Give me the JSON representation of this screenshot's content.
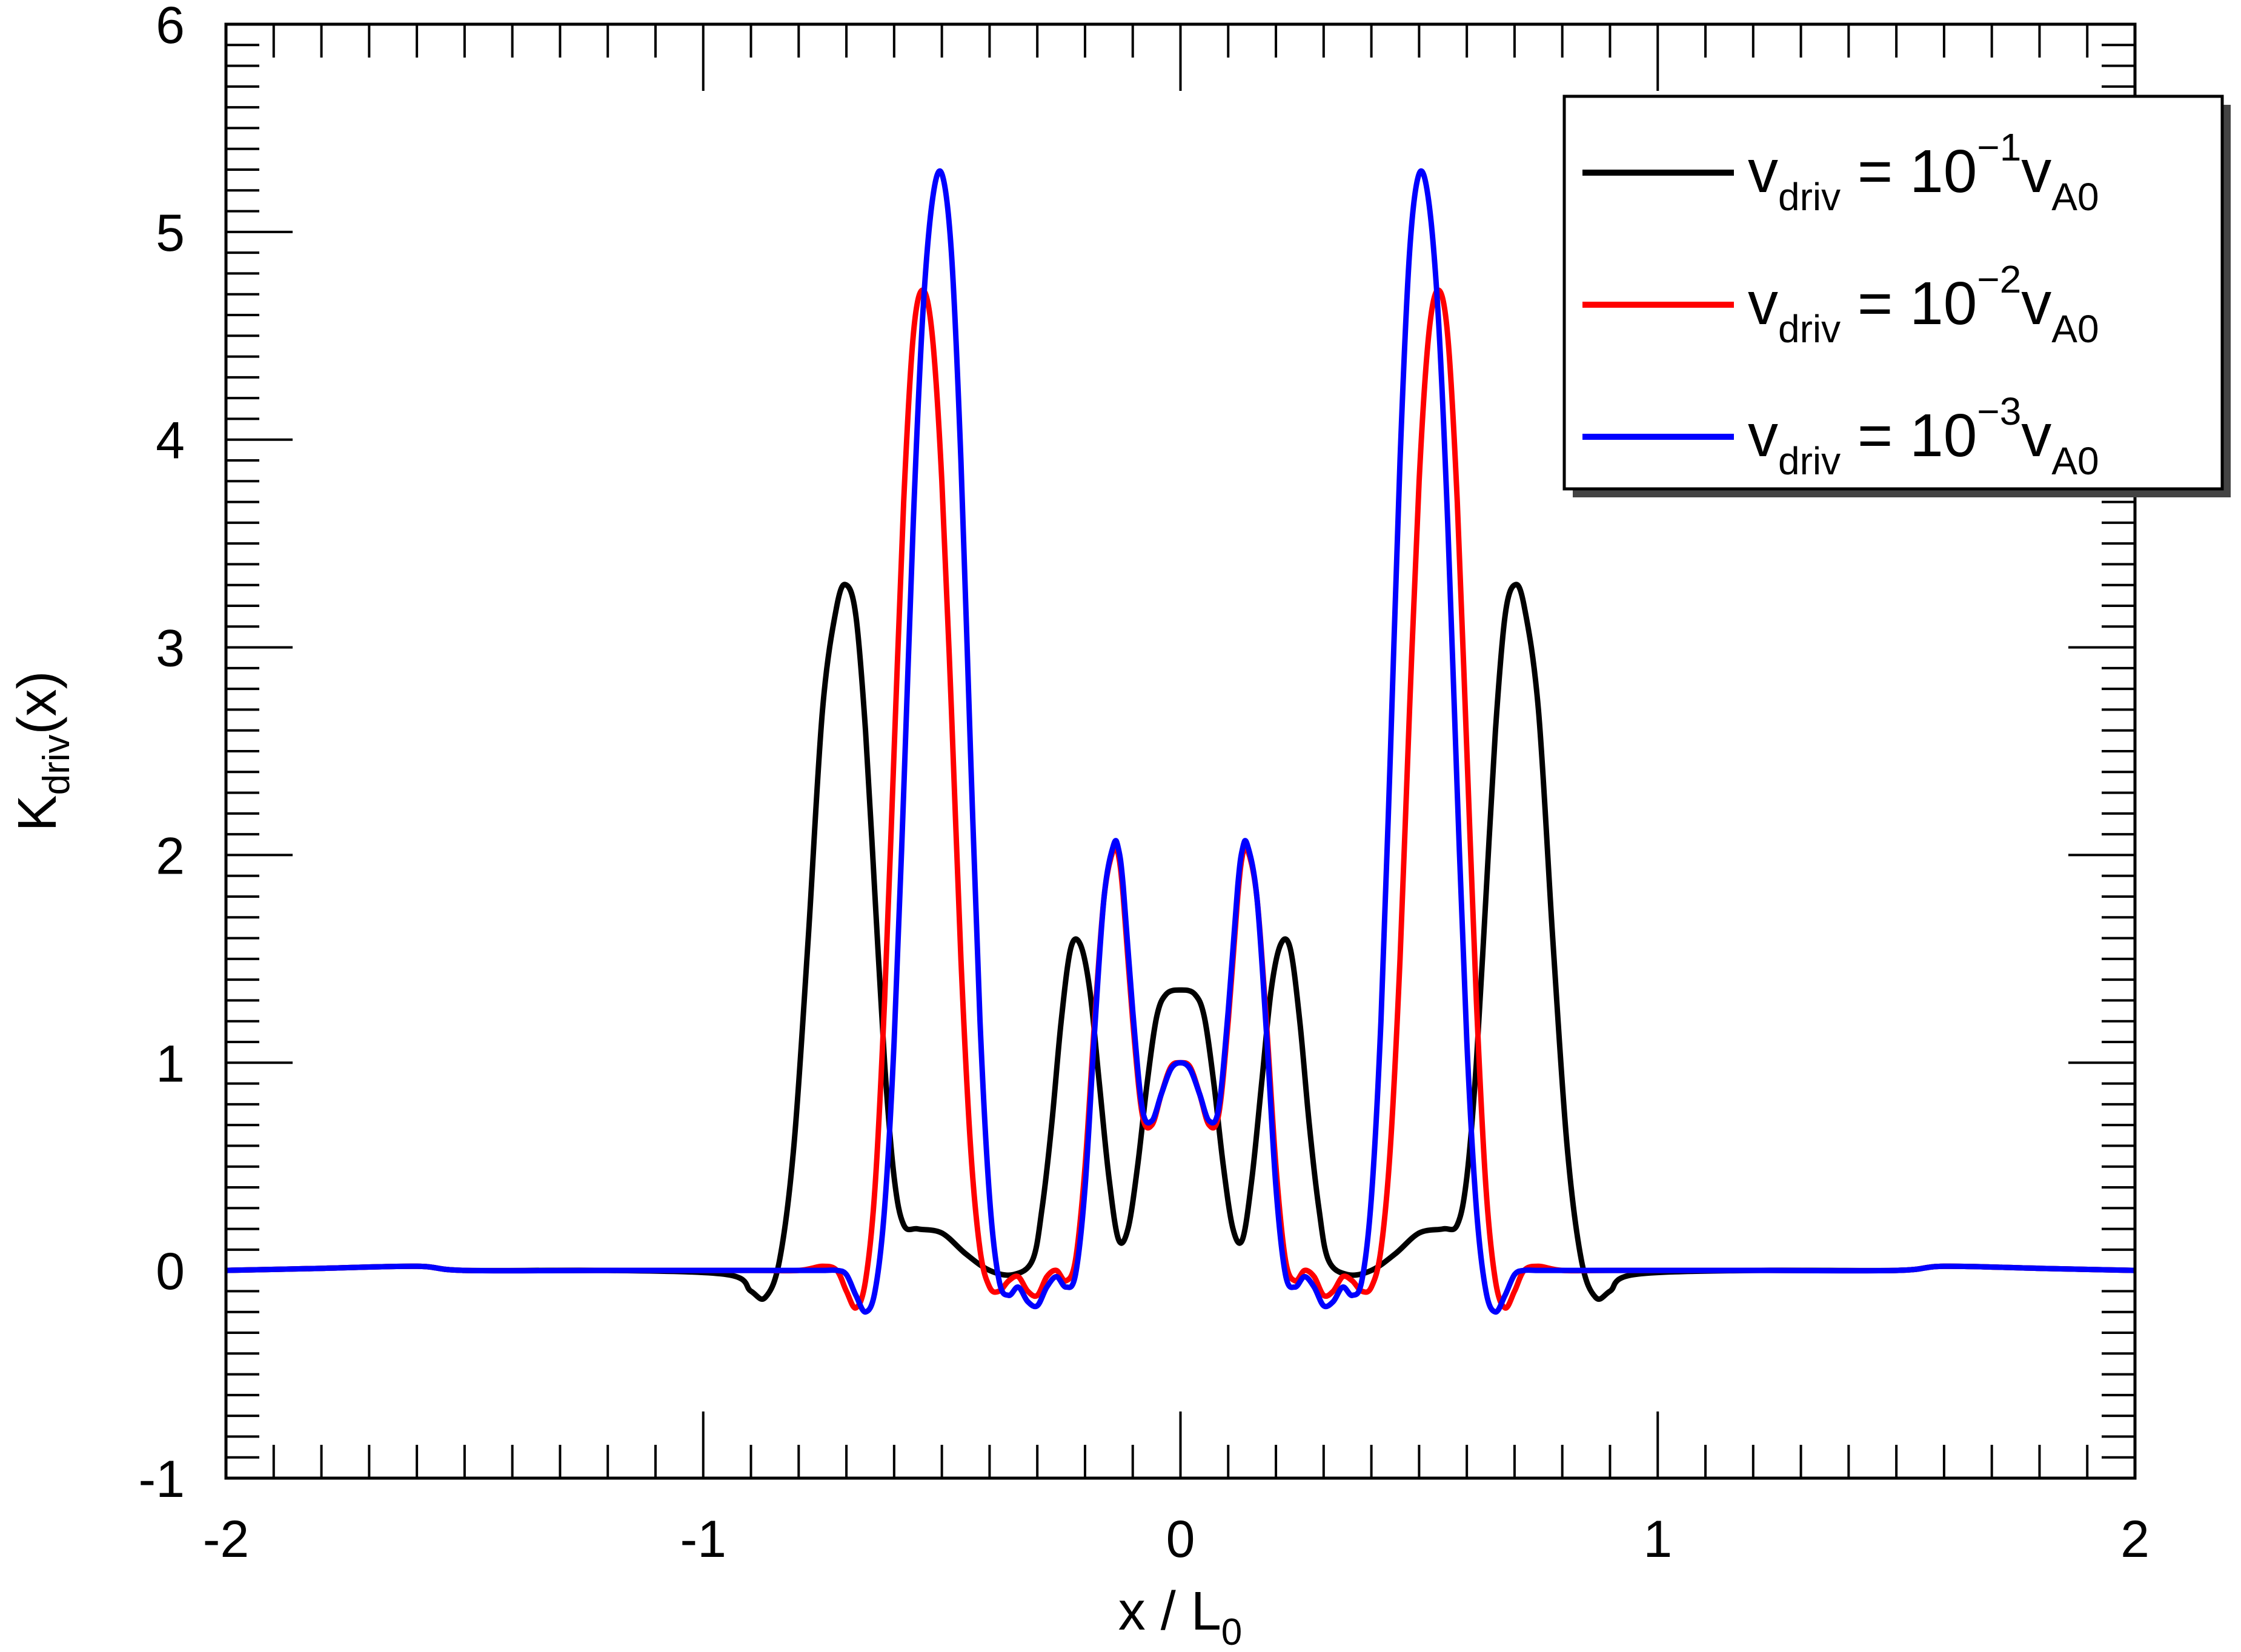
{
  "chart_data": {
    "type": "line",
    "title": "",
    "xlabel": "x / L",
    "xlabel_sub": "0",
    "ylabel": "K",
    "ylabel_sub": "driv",
    "ylabel_suffix": "(x)",
    "xlim": [
      -2,
      2
    ],
    "ylim": [
      -1,
      6
    ],
    "xticks": [
      -2,
      -1,
      0,
      1,
      2
    ],
    "xtick_labels": [
      "-2",
      "-1",
      "0",
      "1",
      "2"
    ],
    "yticks": [
      -1,
      0,
      1,
      2,
      3,
      4,
      5,
      6
    ],
    "ytick_labels": [
      "-1",
      "0",
      "1",
      "2",
      "3",
      "4",
      "5",
      "6"
    ],
    "x_minor_step": 0.1,
    "y_minor_step": 0.1,
    "grid": false,
    "legend_position": "top-right",
    "series": [
      {
        "name": "v_driv = 10^-1 v_A0",
        "legend": {
          "v": "v",
          "sub": "driv",
          "eq": " = 10",
          "exp": "−1",
          "v2": "v",
          "sub2": "A0"
        },
        "color": "#000000",
        "x": [
          -2.0,
          -1.8,
          -1.6,
          -1.5,
          -1.2,
          -0.95,
          -0.9,
          -0.87,
          -0.84,
          -0.81,
          -0.78,
          -0.75,
          -0.72,
          -0.7,
          -0.68,
          -0.66,
          -0.64,
          -0.62,
          -0.6,
          -0.58,
          -0.55,
          -0.5,
          -0.45,
          -0.4,
          -0.35,
          -0.31,
          -0.29,
          -0.27,
          -0.25,
          -0.23,
          -0.21,
          -0.19,
          -0.17,
          -0.15,
          -0.13,
          -0.11,
          -0.09,
          -0.07,
          -0.05,
          -0.03,
          0.0,
          0.03,
          0.05,
          0.07,
          0.09,
          0.11,
          0.13,
          0.15,
          0.17,
          0.19,
          0.21,
          0.23,
          0.25,
          0.27,
          0.29,
          0.31,
          0.35,
          0.4,
          0.45,
          0.5,
          0.55,
          0.58,
          0.6,
          0.62,
          0.64,
          0.66,
          0.68,
          0.7,
          0.72,
          0.75,
          0.78,
          0.81,
          0.84,
          0.87,
          0.9,
          0.95,
          1.2,
          1.5,
          1.6,
          1.8,
          2.0
        ],
        "y": [
          0.0,
          0.01,
          0.02,
          0.0,
          0.0,
          -0.02,
          -0.1,
          -0.13,
          0.05,
          0.6,
          1.6,
          2.7,
          3.2,
          3.3,
          3.15,
          2.6,
          1.8,
          1.0,
          0.45,
          0.22,
          0.2,
          0.18,
          0.08,
          0.0,
          -0.02,
          0.05,
          0.3,
          0.7,
          1.2,
          1.55,
          1.57,
          1.35,
          0.9,
          0.45,
          0.15,
          0.2,
          0.5,
          0.9,
          1.22,
          1.33,
          1.35,
          1.33,
          1.22,
          0.9,
          0.5,
          0.2,
          0.15,
          0.45,
          0.9,
          1.35,
          1.57,
          1.55,
          1.2,
          0.7,
          0.3,
          0.05,
          -0.02,
          0.0,
          0.08,
          0.18,
          0.2,
          0.22,
          0.45,
          1.0,
          1.8,
          2.6,
          3.15,
          3.3,
          3.2,
          2.7,
          1.6,
          0.6,
          0.05,
          -0.13,
          -0.1,
          -0.02,
          0.0,
          0.0,
          0.02,
          0.01,
          0.0
        ]
      },
      {
        "name": "v_driv = 10^-2 v_A0",
        "legend": {
          "v": "v",
          "sub": "driv",
          "eq": " = 10",
          "exp": "−2",
          "v2": "v",
          "sub2": "A0"
        },
        "color": "#ff0000",
        "x": [
          -2.0,
          -1.8,
          -1.6,
          -1.5,
          -1.2,
          -0.9,
          -0.8,
          -0.75,
          -0.72,
          -0.7,
          -0.68,
          -0.66,
          -0.64,
          -0.62,
          -0.6,
          -0.58,
          -0.56,
          -0.54,
          -0.52,
          -0.5,
          -0.48,
          -0.46,
          -0.44,
          -0.42,
          -0.4,
          -0.38,
          -0.36,
          -0.34,
          -0.32,
          -0.3,
          -0.28,
          -0.26,
          -0.24,
          -0.22,
          -0.2,
          -0.18,
          -0.16,
          -0.14,
          -0.13,
          -0.12,
          -0.1,
          -0.08,
          -0.06,
          -0.04,
          -0.02,
          0.0,
          0.02,
          0.04,
          0.06,
          0.08,
          0.1,
          0.12,
          0.13,
          0.14,
          0.16,
          0.18,
          0.2,
          0.22,
          0.24,
          0.26,
          0.28,
          0.3,
          0.32,
          0.34,
          0.36,
          0.38,
          0.4,
          0.42,
          0.44,
          0.46,
          0.48,
          0.5,
          0.52,
          0.54,
          0.56,
          0.58,
          0.6,
          0.62,
          0.64,
          0.66,
          0.68,
          0.7,
          0.72,
          0.75,
          0.8,
          0.9,
          1.2,
          1.5,
          1.6,
          1.8,
          2.0
        ],
        "y": [
          0.0,
          0.01,
          0.02,
          0.0,
          0.0,
          0.0,
          0.0,
          0.02,
          0.0,
          -0.1,
          -0.18,
          -0.05,
          0.4,
          1.3,
          2.5,
          3.7,
          4.5,
          4.72,
          4.5,
          3.8,
          2.7,
          1.5,
          0.6,
          0.1,
          -0.08,
          -0.1,
          -0.05,
          -0.03,
          -0.1,
          -0.12,
          -0.03,
          0.0,
          -0.05,
          0.05,
          0.5,
          1.2,
          1.8,
          2.03,
          2.0,
          1.8,
          1.2,
          0.75,
          0.7,
          0.85,
          0.98,
          1.0,
          0.98,
          0.85,
          0.7,
          0.75,
          1.2,
          1.8,
          2.0,
          2.03,
          1.8,
          1.2,
          0.5,
          0.05,
          -0.05,
          0.0,
          -0.03,
          -0.12,
          -0.1,
          -0.03,
          -0.05,
          -0.1,
          -0.08,
          0.1,
          0.6,
          1.5,
          2.7,
          3.8,
          4.5,
          4.72,
          4.5,
          3.7,
          2.5,
          1.3,
          0.4,
          -0.05,
          -0.18,
          -0.1,
          0.0,
          0.02,
          0.0,
          0.0,
          0.0,
          0.0,
          0.02,
          0.01,
          0.0
        ]
      },
      {
        "name": "v_driv = 10^-3 v_A0",
        "legend": {
          "v": "v",
          "sub": "driv",
          "eq": " = 10",
          "exp": "−3",
          "v2": "v",
          "sub2": "A0"
        },
        "color": "#0000ff",
        "x": [
          -2.0,
          -1.8,
          -1.6,
          -1.5,
          -1.2,
          -0.9,
          -0.8,
          -0.75,
          -0.72,
          -0.7,
          -0.68,
          -0.66,
          -0.64,
          -0.62,
          -0.6,
          -0.58,
          -0.56,
          -0.54,
          -0.52,
          -0.5,
          -0.48,
          -0.46,
          -0.44,
          -0.42,
          -0.4,
          -0.38,
          -0.36,
          -0.34,
          -0.32,
          -0.3,
          -0.28,
          -0.26,
          -0.24,
          -0.22,
          -0.2,
          -0.18,
          -0.16,
          -0.14,
          -0.13,
          -0.12,
          -0.1,
          -0.08,
          -0.06,
          -0.04,
          -0.02,
          0.0,
          0.02,
          0.04,
          0.06,
          0.08,
          0.1,
          0.12,
          0.13,
          0.14,
          0.16,
          0.18,
          0.2,
          0.22,
          0.24,
          0.26,
          0.28,
          0.3,
          0.32,
          0.34,
          0.36,
          0.38,
          0.4,
          0.42,
          0.44,
          0.46,
          0.48,
          0.5,
          0.52,
          0.54,
          0.56,
          0.58,
          0.6,
          0.62,
          0.64,
          0.66,
          0.68,
          0.7,
          0.72,
          0.75,
          0.8,
          0.9,
          1.2,
          1.5,
          1.6,
          1.8,
          2.0
        ],
        "y": [
          0.0,
          0.01,
          0.02,
          0.0,
          0.0,
          0.0,
          0.0,
          0.0,
          0.0,
          -0.02,
          -0.12,
          -0.2,
          -0.1,
          0.3,
          1.1,
          2.3,
          3.6,
          4.6,
          5.15,
          5.28,
          4.9,
          3.9,
          2.5,
          1.2,
          0.35,
          -0.05,
          -0.12,
          -0.08,
          -0.15,
          -0.17,
          -0.08,
          -0.03,
          -0.08,
          -0.02,
          0.4,
          1.15,
          1.8,
          2.05,
          2.03,
          1.85,
          1.25,
          0.78,
          0.72,
          0.85,
          0.97,
          1.0,
          0.97,
          0.85,
          0.72,
          0.78,
          1.25,
          1.85,
          2.03,
          2.05,
          1.8,
          1.15,
          0.4,
          -0.02,
          -0.08,
          -0.03,
          -0.08,
          -0.17,
          -0.15,
          -0.08,
          -0.12,
          -0.05,
          0.35,
          1.2,
          2.5,
          3.9,
          4.9,
          5.28,
          5.15,
          4.6,
          3.6,
          2.3,
          1.1,
          0.3,
          -0.1,
          -0.2,
          -0.12,
          -0.02,
          0.0,
          0.0,
          0.0,
          0.0,
          0.0,
          0.0,
          0.02,
          0.01,
          0.0
        ]
      }
    ]
  }
}
